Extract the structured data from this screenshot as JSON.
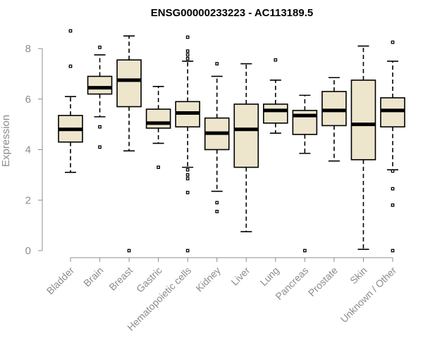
{
  "chart_data": {
    "type": "boxplot",
    "title": "ENSG00000233223 - AC113189.5",
    "xlabel": "",
    "ylabel": "Expression",
    "ylim": [
      0,
      8.5
    ],
    "yticks": [
      0,
      2,
      4,
      6,
      8
    ],
    "box_fill": "#ede6cd",
    "median_color": "#000000",
    "axis_color": "#8c8c8c",
    "categories": [
      "Bladder",
      "Brain",
      "Breast",
      "Gastric",
      "Hematopoietic cells",
      "Kidney",
      "Liver",
      "Lung",
      "Pancreas",
      "Prostate",
      "Skin",
      "Unknown / Other"
    ],
    "boxes": [
      {
        "name": "Bladder",
        "whisker_low": 3.1,
        "q1": 4.3,
        "median": 4.8,
        "q3": 5.35,
        "whisker_high": 6.1,
        "outliers": [
          8.7,
          7.3
        ]
      },
      {
        "name": "Brain",
        "whisker_low": 5.3,
        "q1": 6.2,
        "median": 6.45,
        "q3": 6.9,
        "whisker_high": 7.75,
        "outliers": [
          8.05,
          4.9,
          4.1
        ]
      },
      {
        "name": "Breast",
        "whisker_low": 3.95,
        "q1": 5.7,
        "median": 6.75,
        "q3": 7.55,
        "whisker_high": 8.5,
        "outliers": [
          0.0
        ]
      },
      {
        "name": "Gastric",
        "whisker_low": 4.25,
        "q1": 4.85,
        "median": 5.05,
        "q3": 5.6,
        "whisker_high": 6.5,
        "outliers": [
          3.3
        ]
      },
      {
        "name": "Hematopoietic cells",
        "whisker_low": 3.3,
        "q1": 4.9,
        "median": 5.45,
        "q3": 5.9,
        "whisker_high": 7.5,
        "outliers": [
          8.45,
          7.9,
          7.75,
          7.6,
          3.2,
          3.0,
          2.85,
          2.3,
          0.0
        ]
      },
      {
        "name": "Kidney",
        "whisker_low": 2.35,
        "q1": 4.0,
        "median": 4.65,
        "q3": 5.25,
        "whisker_high": 6.9,
        "outliers": [
          7.4,
          1.9,
          1.55
        ]
      },
      {
        "name": "Liver",
        "whisker_low": 0.75,
        "q1": 3.3,
        "median": 4.8,
        "q3": 5.8,
        "whisker_high": 7.4,
        "outliers": []
      },
      {
        "name": "Lung",
        "whisker_low": 4.65,
        "q1": 5.05,
        "median": 5.55,
        "q3": 5.8,
        "whisker_high": 6.75,
        "outliers": [
          7.55
        ]
      },
      {
        "name": "Pancreas",
        "whisker_low": 3.85,
        "q1": 4.6,
        "median": 5.35,
        "q3": 5.55,
        "whisker_high": 6.15,
        "outliers": [
          0.0
        ]
      },
      {
        "name": "Prostate",
        "whisker_low": 3.55,
        "q1": 4.95,
        "median": 5.55,
        "q3": 6.3,
        "whisker_high": 6.85,
        "outliers": []
      },
      {
        "name": "Skin",
        "whisker_low": 0.05,
        "q1": 3.6,
        "median": 5.0,
        "q3": 6.75,
        "whisker_high": 8.1,
        "outliers": []
      },
      {
        "name": "Unknown / Other",
        "whisker_low": 3.2,
        "q1": 4.9,
        "median": 5.55,
        "q3": 6.05,
        "whisker_high": 7.5,
        "outliers": [
          8.25,
          3.15,
          2.45,
          1.8,
          0.0
        ]
      }
    ]
  }
}
